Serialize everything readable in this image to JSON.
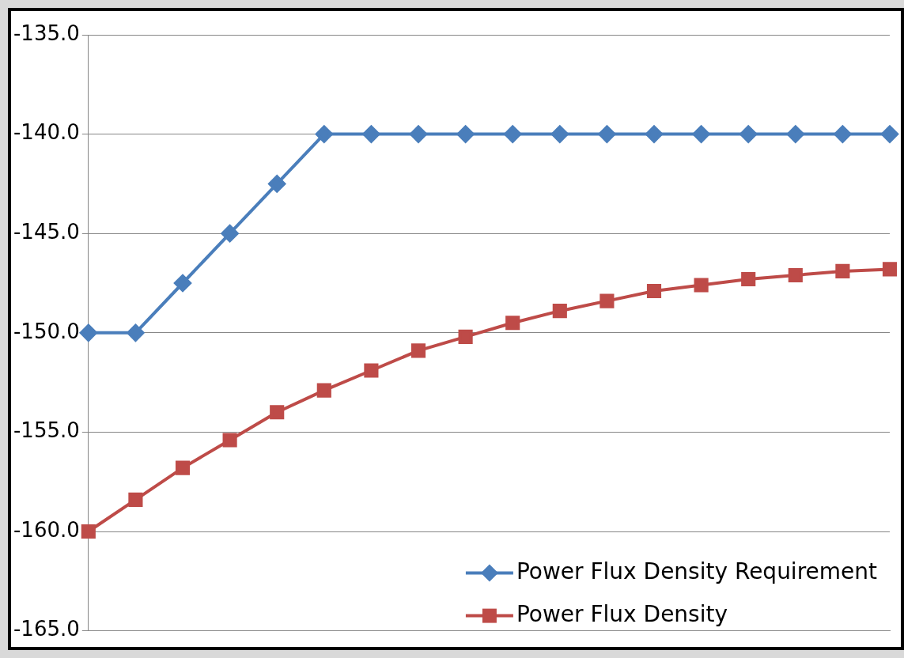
{
  "chart_data": {
    "type": "line",
    "categories": [
      null,
      null,
      null,
      null,
      null,
      null,
      null,
      null,
      null,
      null,
      null,
      null,
      null,
      null,
      null,
      null,
      null,
      null
    ],
    "series": [
      {
        "name": "Power Flux Density Requirement",
        "color": "#4a7ebb",
        "marker": "diamond",
        "values": [
          -150,
          -150,
          -147.5,
          -145,
          -142.5,
          -140,
          -140,
          -140,
          -140,
          -140,
          -140,
          -140,
          -140,
          -140,
          -140,
          -140,
          -140,
          -140
        ]
      },
      {
        "name": "Power Flux Density",
        "color": "#be4b48",
        "marker": "square",
        "values": [
          -160,
          -158.4,
          -156.8,
          -155.4,
          -154.0,
          -152.9,
          -151.9,
          -150.9,
          -150.2,
          -149.5,
          -148.9,
          -148.4,
          -147.9,
          -147.6,
          -147.3,
          -147.1,
          -146.9,
          -146.8
        ]
      }
    ],
    "ylim": [
      -165,
      -135
    ],
    "yticks": [
      {
        "value": -165,
        "label": "-165.0"
      },
      {
        "value": -160,
        "label": "-160.0"
      },
      {
        "value": -155,
        "label": "-155.0"
      },
      {
        "value": -150,
        "label": "-150.0"
      },
      {
        "value": -145,
        "label": "-145.0"
      },
      {
        "value": -140,
        "label": "-140.0"
      },
      {
        "value": -135,
        "label": "-135.0"
      }
    ],
    "grid": "y",
    "legend": "bottom right",
    "line_style": "solid"
  }
}
